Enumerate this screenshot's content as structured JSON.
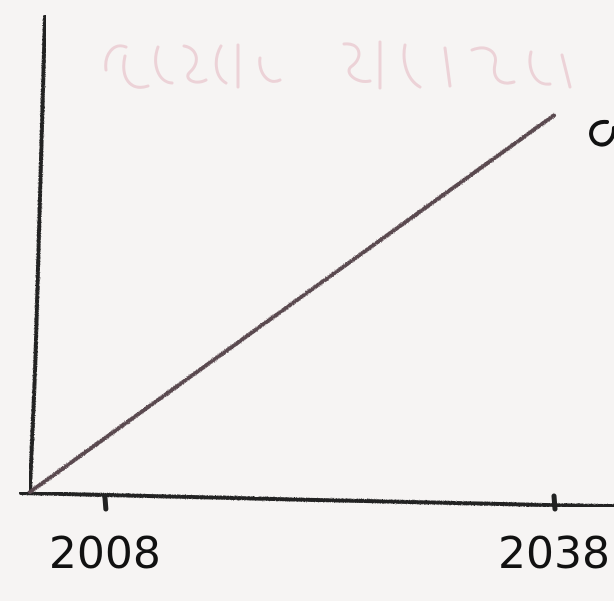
{
  "chart_data": {
    "type": "line",
    "x": [
      2003,
      2038
    ],
    "series": [
      {
        "values": [
          0,
          10
        ]
      }
    ],
    "x_ticks": [
      2008,
      2038
    ],
    "x_tick_labels": [
      "2008",
      "2038"
    ],
    "xlim": [
      2003,
      2038
    ],
    "ylim": [
      0,
      12
    ],
    "grid": false,
    "legend": "none",
    "colors": {
      "axis": "#222222",
      "line": "#5a4a50",
      "faded_text": "#e3b6bf"
    },
    "notes": {
      "faded_title_visible": true,
      "right_edge_mark_visible": true
    }
  }
}
